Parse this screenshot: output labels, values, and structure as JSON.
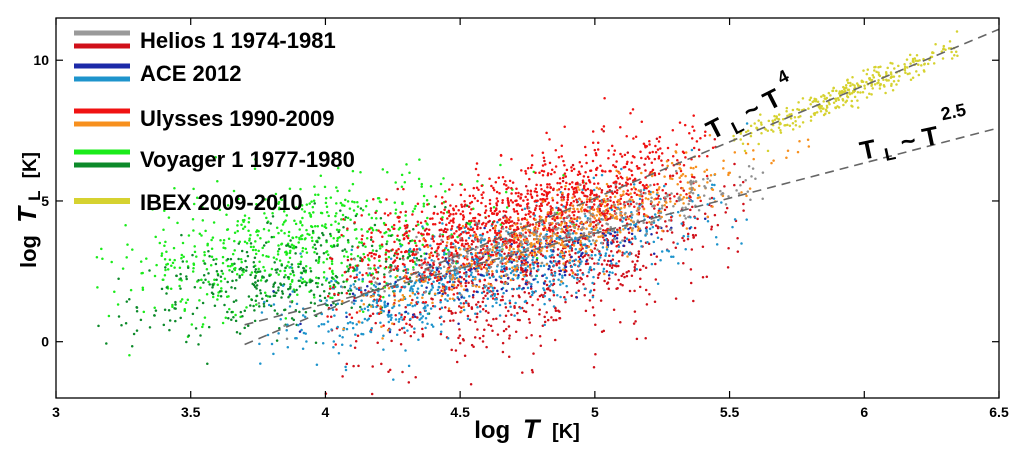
{
  "chart_data": {
    "type": "scatter",
    "title": "",
    "xlabel": {
      "prefix": "log",
      "var": "T",
      "unit": "[K]"
    },
    "ylabel": {
      "prefix": "log",
      "var": "T",
      "sub": "L",
      "unit": "[K]"
    },
    "xlim": [
      3,
      6.5
    ],
    "ylim": [
      -2,
      11.5
    ],
    "xticks": [
      3,
      3.5,
      4,
      4.5,
      5,
      5.5,
      6,
      6.5
    ],
    "xtick_labels": [
      "3",
      "3.5",
      "4",
      "4.5",
      "5",
      "5.5",
      "6",
      "6.5"
    ],
    "yticks": [
      0,
      5,
      10
    ],
    "ytick_labels": [
      "0",
      "5",
      "10"
    ],
    "grid": false,
    "legend": {
      "placement": "top-left",
      "entries": [
        {
          "label": "Helios 1 1974-1981",
          "colors": [
            "#9a9a9a",
            "#d0101a"
          ]
        },
        {
          "label": "ACE 2012",
          "colors": [
            "#1c2aa8",
            "#1e94cc"
          ]
        },
        {
          "label": "Ulysses 1990-2009",
          "colors": [
            "#f01212",
            "#f7901e"
          ]
        },
        {
          "label": "Voyager 1 1977-1980",
          "colors": [
            "#1aeb1a",
            "#0c8a2a"
          ]
        },
        {
          "label": "IBEX 2009-2010",
          "colors": [
            "#d6d230",
            "#d6d230"
          ]
        }
      ]
    },
    "reference_lines": [
      {
        "name": "T_L ~ T^4",
        "slope": 4,
        "intercept": -14.9,
        "x_range": [
          3.7,
          6.5
        ],
        "style": "dashed",
        "color": "#666666",
        "label_base": "T",
        "label_sub": "L",
        "label_mid": " ~ T",
        "label_exp": "4"
      },
      {
        "name": "T_L ~ T^2.5",
        "slope": 2.5,
        "intercept": -8.65,
        "x_range": [
          3.7,
          6.5
        ],
        "style": "dashed",
        "color": "#666666",
        "label_base": "T",
        "label_sub": "L",
        "label_mid": " ~ T",
        "label_exp": "2.5"
      }
    ],
    "series": [
      {
        "name": "Voyager 1 (light)",
        "color": "#1aeb1a",
        "x_range": [
          3.15,
          5.1
        ],
        "center": [
          3.9,
          3.5
        ],
        "spread": [
          0.35,
          1.1
        ],
        "slope": 1.6,
        "count": 650
      },
      {
        "name": "Voyager 1 (dark)",
        "color": "#0c8a2a",
        "x_range": [
          3.15,
          4.8
        ],
        "center": [
          3.85,
          2.2
        ],
        "spread": [
          0.3,
          0.9
        ],
        "slope": 1.6,
        "count": 380
      },
      {
        "name": "Helios 1 (red)",
        "color": "#d0101a",
        "x_range": [
          4.0,
          5.6
        ],
        "center": [
          4.8,
          2.6
        ],
        "spread": [
          0.35,
          1.3
        ],
        "slope": 2.4,
        "count": 850
      },
      {
        "name": "ACE 2012 (light blue)",
        "color": "#1e94cc",
        "x_range": [
          3.75,
          5.6
        ],
        "center": [
          4.6,
          2.5
        ],
        "spread": [
          0.4,
          0.9
        ],
        "slope": 2.5,
        "count": 850
      },
      {
        "name": "ACE 2012 (dark blue)",
        "color": "#1c2aa8",
        "x_range": [
          3.8,
          5.5
        ],
        "center": [
          4.7,
          2.8
        ],
        "spread": [
          0.35,
          0.6
        ],
        "slope": 2.5,
        "count": 160
      },
      {
        "name": "Ulysses (red)",
        "color": "#f01212",
        "x_range": [
          4.0,
          5.45
        ],
        "center": [
          4.75,
          4.6
        ],
        "spread": [
          0.35,
          0.9
        ],
        "slope": 3.0,
        "count": 1150
      },
      {
        "name": "Ulysses (orange)",
        "color": "#f7901e",
        "x_range": [
          4.0,
          5.8
        ],
        "center": [
          4.9,
          4.0
        ],
        "spread": [
          0.35,
          0.6
        ],
        "slope": 3.3,
        "count": 520
      },
      {
        "name": "Helios 1 (gray)",
        "color": "#8f8f8f",
        "x_range": [
          3.7,
          5.7
        ],
        "center": [
          4.9,
          3.9
        ],
        "spread": [
          0.4,
          0.5
        ],
        "slope": 2.5,
        "count": 300
      },
      {
        "name": "IBEX 2009-2010",
        "color": "#d6d230",
        "x_range": [
          5.5,
          6.35
        ],
        "center": [
          5.95,
          8.9
        ],
        "spread": [
          0.22,
          0.25
        ],
        "slope": 4.0,
        "count": 320
      }
    ]
  }
}
